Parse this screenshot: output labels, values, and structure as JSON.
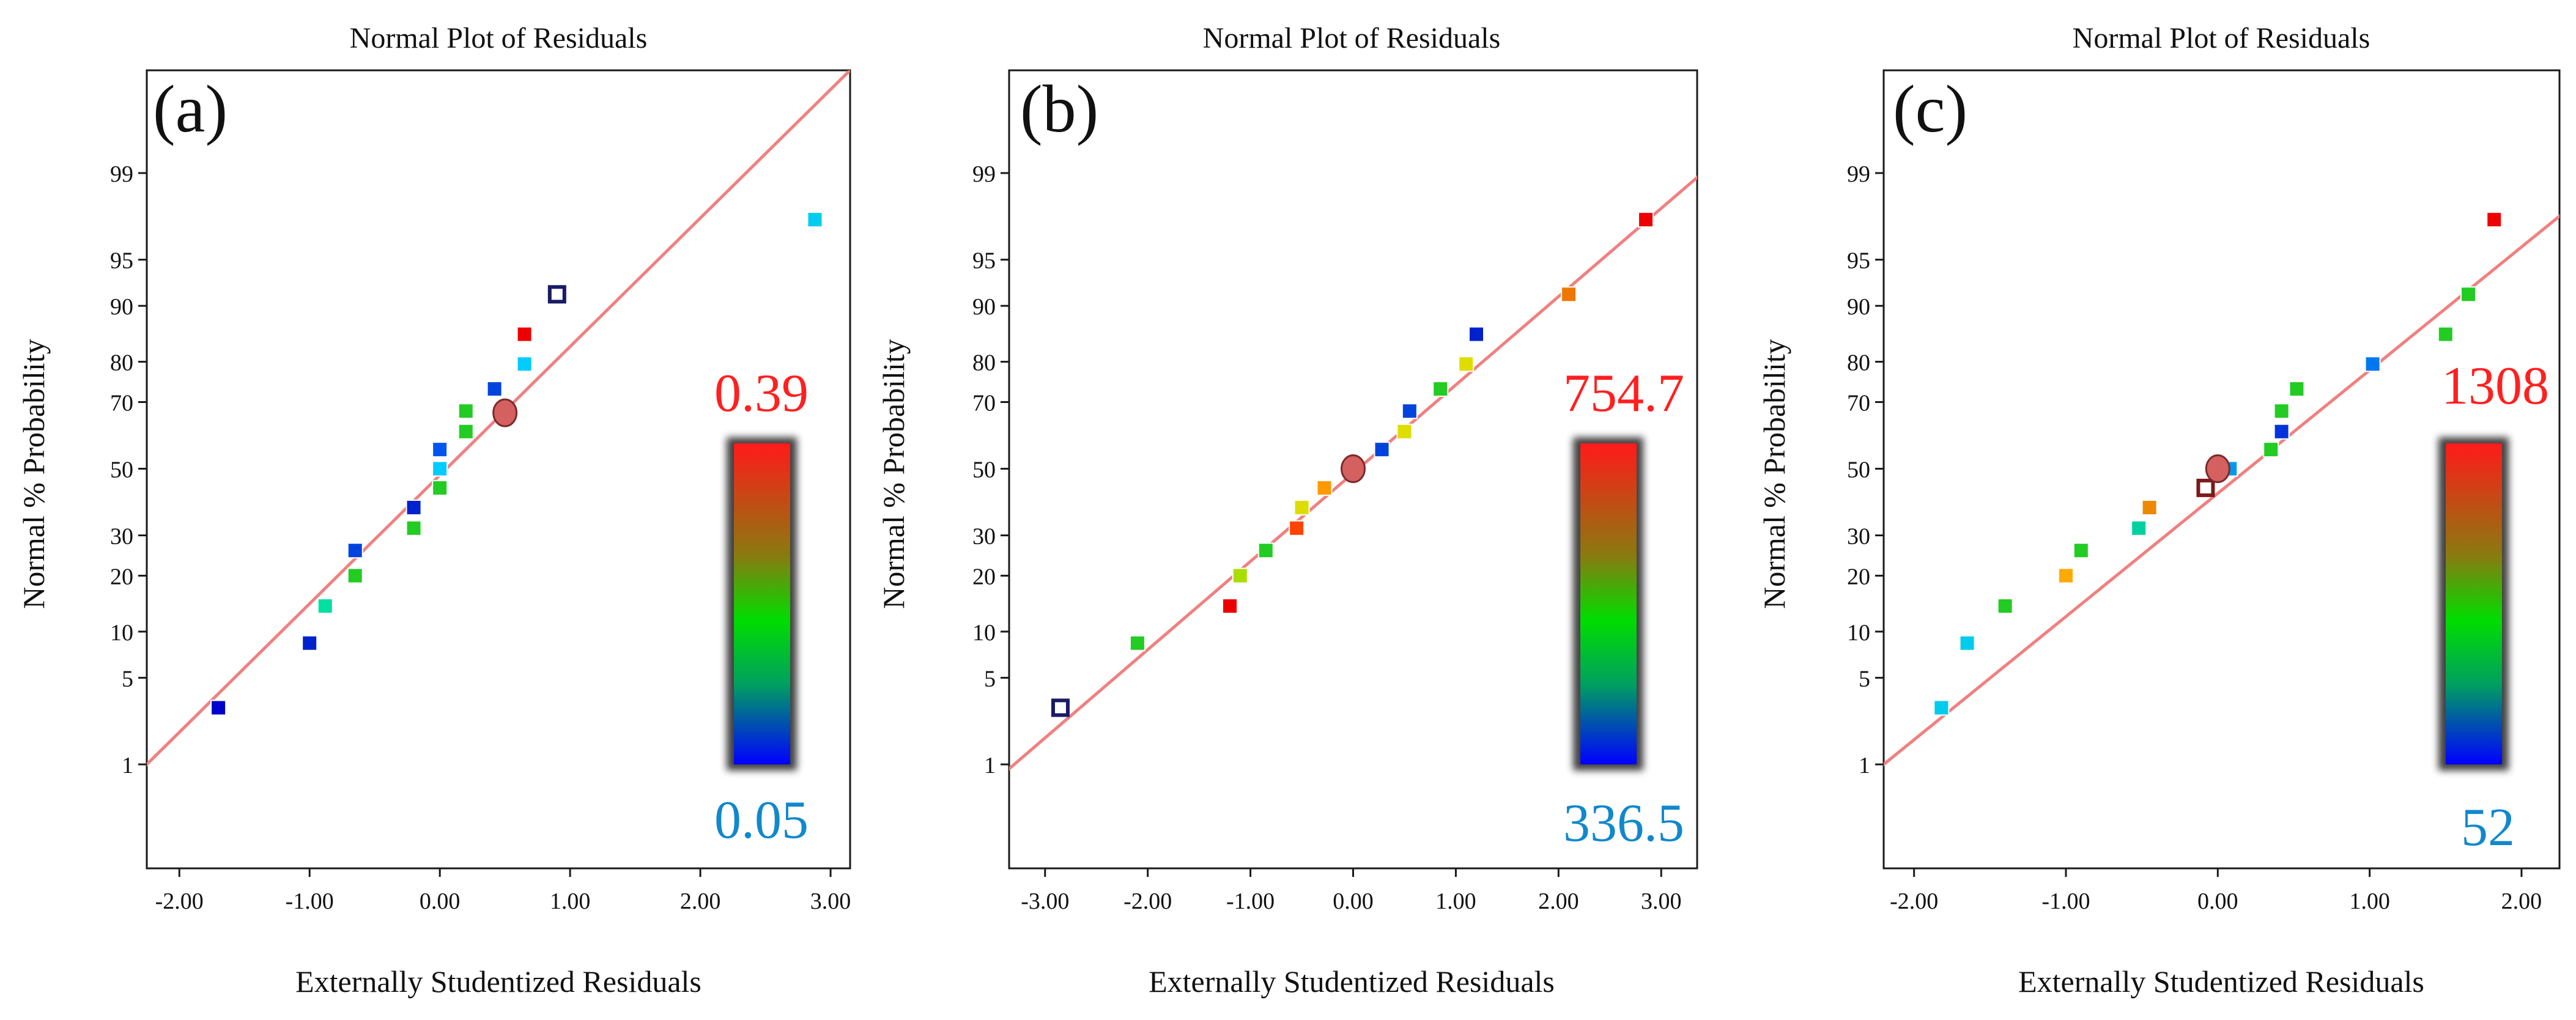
{
  "chart_data": [
    {
      "type": "scatter",
      "panel_label": "(a)",
      "title": "Normal Plot of Residuals",
      "xlabel": "Externally Studentized Residuals",
      "ylabel": "Normal % Probability",
      "xlim": [
        -2.25,
        3.15
      ],
      "xticks": [
        "-2.00",
        "-1.00",
        "0.00",
        "1.00",
        "2.00",
        "3.00"
      ],
      "xtick_values": [
        -2,
        -1,
        0,
        1,
        2,
        3
      ],
      "yticks": [
        "1",
        "5",
        "10",
        "20",
        "30",
        "50",
        "70",
        "80",
        "90",
        "95",
        "99"
      ],
      "ytick_values": [
        1,
        5,
        10,
        20,
        30,
        50,
        70,
        80,
        90,
        95,
        99
      ],
      "fit_line": {
        "x_at_1pct": -2.25,
        "x_at_99pct": 2.35
      },
      "color_scale": {
        "max_label": "0.39",
        "min_label": "0.05",
        "max_color": "#ff2020",
        "min_color": "#1188cc"
      },
      "points": [
        {
          "x": -1.7,
          "p": 3,
          "color": "#0000cc",
          "shape": "square"
        },
        {
          "x": -1.0,
          "p": 8.5,
          "color": "#0022cc",
          "shape": "square"
        },
        {
          "x": -0.88,
          "p": 14,
          "color": "#00e0a0",
          "shape": "square"
        },
        {
          "x": -0.65,
          "p": 20,
          "color": "#22cc22",
          "shape": "square"
        },
        {
          "x": -0.65,
          "p": 26,
          "color": "#0044dd",
          "shape": "square"
        },
        {
          "x": -0.2,
          "p": 32,
          "color": "#22cc22",
          "shape": "square"
        },
        {
          "x": -0.2,
          "p": 38,
          "color": "#0022cc",
          "shape": "square"
        },
        {
          "x": 0.0,
          "p": 44,
          "color": "#22cc22",
          "shape": "square"
        },
        {
          "x": 0.0,
          "p": 50,
          "color": "#00ccff",
          "shape": "square"
        },
        {
          "x": 0.0,
          "p": 56,
          "color": "#0055ee",
          "shape": "square"
        },
        {
          "x": 0.2,
          "p": 61.5,
          "color": "#22cc22",
          "shape": "square"
        },
        {
          "x": 0.2,
          "p": 67.5,
          "color": "#22cc22",
          "shape": "square"
        },
        {
          "x": 0.42,
          "p": 73.5,
          "color": "#0044dd",
          "shape": "square"
        },
        {
          "x": 0.65,
          "p": 79.5,
          "color": "#00ccff",
          "shape": "square"
        },
        {
          "x": 0.65,
          "p": 85.5,
          "color": "#ee0000",
          "shape": "square"
        },
        {
          "x": 0.9,
          "p": 91.5,
          "color": "#1a1a66",
          "shape": "open-square"
        },
        {
          "x": 2.88,
          "p": 97.5,
          "color": "#00ccee",
          "shape": "square"
        },
        {
          "x": 0.5,
          "p": 67,
          "color": "#d46060",
          "shape": "circle"
        }
      ]
    },
    {
      "type": "scatter",
      "panel_label": "(b)",
      "title": "Normal Plot of Residuals",
      "xlabel": "Externally Studentized Residuals",
      "ylabel": "Normal % Probability",
      "xlim": [
        -3.35,
        3.35
      ],
      "xticks": [
        "-3.00",
        "-2.00",
        "-1.00",
        "0.00",
        "1.00",
        "2.00",
        "3.00"
      ],
      "xtick_values": [
        -3,
        -2,
        -1,
        0,
        1,
        2,
        3
      ],
      "yticks": [
        "1",
        "5",
        "10",
        "20",
        "30",
        "50",
        "70",
        "80",
        "90",
        "95",
        "99"
      ],
      "ytick_values": [
        1,
        5,
        10,
        20,
        30,
        50,
        70,
        80,
        90,
        95,
        99
      ],
      "fit_line": {
        "x_at_1pct": -3.3,
        "x_at_99pct": 3.4
      },
      "color_scale": {
        "max_label": "754.7",
        "min_label": "336.5",
        "max_color": "#ff2020",
        "min_color": "#1188cc"
      },
      "points": [
        {
          "x": -2.85,
          "p": 3,
          "color": "#1a1a66",
          "shape": "open-square"
        },
        {
          "x": -2.1,
          "p": 8.5,
          "color": "#22cc22",
          "shape": "square"
        },
        {
          "x": -1.2,
          "p": 14,
          "color": "#ee0000",
          "shape": "square"
        },
        {
          "x": -1.1,
          "p": 20,
          "color": "#aadd00",
          "shape": "square"
        },
        {
          "x": -0.85,
          "p": 26,
          "color": "#22cc22",
          "shape": "square"
        },
        {
          "x": -0.55,
          "p": 32,
          "color": "#ff4400",
          "shape": "square"
        },
        {
          "x": -0.5,
          "p": 38,
          "color": "#dddd00",
          "shape": "square"
        },
        {
          "x": -0.28,
          "p": 44,
          "color": "#ff9900",
          "shape": "square"
        },
        {
          "x": 0.0,
          "p": 50,
          "color": "#dddd00",
          "shape": "open-square"
        },
        {
          "x": 0.28,
          "p": 56,
          "color": "#0044dd",
          "shape": "square"
        },
        {
          "x": 0.5,
          "p": 61.5,
          "color": "#dddd00",
          "shape": "square"
        },
        {
          "x": 0.55,
          "p": 67.5,
          "color": "#0044dd",
          "shape": "square"
        },
        {
          "x": 0.85,
          "p": 73.5,
          "color": "#22cc22",
          "shape": "square"
        },
        {
          "x": 1.1,
          "p": 79.5,
          "color": "#dddd00",
          "shape": "square"
        },
        {
          "x": 1.2,
          "p": 85.5,
          "color": "#0022cc",
          "shape": "square"
        },
        {
          "x": 2.1,
          "p": 91.5,
          "color": "#ee7700",
          "shape": "square"
        },
        {
          "x": 2.85,
          "p": 97.5,
          "color": "#ee0000",
          "shape": "square"
        },
        {
          "x": 0.0,
          "p": 50,
          "color": "#d46060",
          "shape": "circle"
        }
      ]
    },
    {
      "type": "scatter",
      "panel_label": "(c)",
      "title": "Normal Plot of Residuals",
      "xlabel": "Externally Studentized Residuals",
      "ylabel": "Normal % Probability",
      "xlim": [
        -2.2,
        2.25
      ],
      "xticks": [
        "-2.00",
        "-1.00",
        "0.00",
        "1.00",
        "2.00"
      ],
      "xtick_values": [
        -2,
        -1,
        0,
        1,
        2
      ],
      "yticks": [
        "1",
        "5",
        "10",
        "20",
        "30",
        "50",
        "70",
        "80",
        "90",
        "95",
        "99"
      ],
      "ytick_values": [
        1,
        5,
        10,
        20,
        30,
        50,
        70,
        80,
        90,
        95,
        99
      ],
      "fit_line": {
        "x_at_1pct": -2.2,
        "x_at_99pct": 2.6
      },
      "color_scale": {
        "max_label": "1308",
        "min_label": "52",
        "max_color": "#ff2020",
        "min_color": "#1188cc"
      },
      "points": [
        {
          "x": -1.82,
          "p": 3,
          "color": "#00ccee",
          "shape": "square"
        },
        {
          "x": -1.65,
          "p": 8.5,
          "color": "#00ccee",
          "shape": "square"
        },
        {
          "x": -1.4,
          "p": 14,
          "color": "#22cc22",
          "shape": "square"
        },
        {
          "x": -1.0,
          "p": 20,
          "color": "#ffaa00",
          "shape": "square"
        },
        {
          "x": -0.9,
          "p": 26,
          "color": "#22cc22",
          "shape": "square"
        },
        {
          "x": -0.52,
          "p": 32,
          "color": "#00d0a0",
          "shape": "square"
        },
        {
          "x": -0.45,
          "p": 38,
          "color": "#ee8800",
          "shape": "square"
        },
        {
          "x": -0.08,
          "p": 44,
          "color": "#7a1a1a",
          "shape": "open-square"
        },
        {
          "x": 0.08,
          "p": 50,
          "color": "#0099ee",
          "shape": "square"
        },
        {
          "x": 0.35,
          "p": 56,
          "color": "#22cc22",
          "shape": "square"
        },
        {
          "x": 0.42,
          "p": 61.5,
          "color": "#0033dd",
          "shape": "square"
        },
        {
          "x": 0.42,
          "p": 67.5,
          "color": "#22cc22",
          "shape": "square"
        },
        {
          "x": 0.52,
          "p": 73.5,
          "color": "#22cc22",
          "shape": "square"
        },
        {
          "x": 1.02,
          "p": 79.5,
          "color": "#0077ee",
          "shape": "square"
        },
        {
          "x": 1.5,
          "p": 85.5,
          "color": "#22cc22",
          "shape": "square"
        },
        {
          "x": 1.65,
          "p": 91.5,
          "color": "#22cc22",
          "shape": "square"
        },
        {
          "x": 1.82,
          "p": 97.5,
          "color": "#ee0000",
          "shape": "square"
        },
        {
          "x": 0.0,
          "p": 50,
          "color": "#d46060",
          "shape": "circle"
        }
      ]
    }
  ]
}
